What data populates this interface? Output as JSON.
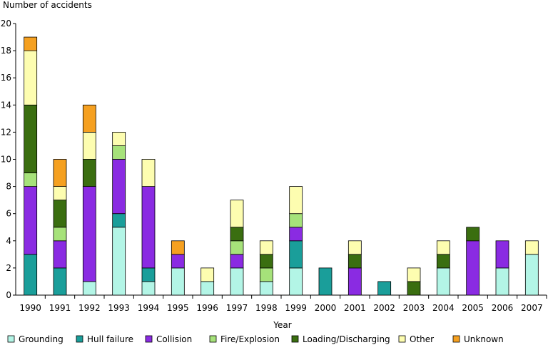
{
  "chart_data": {
    "type": "bar",
    "stacked": true,
    "title": "",
    "ylabel": "Number of accidents",
    "xlabel": "Year",
    "ylim": [
      0,
      20
    ],
    "yticks": [
      "0",
      "2",
      "4",
      "6",
      "8",
      "10",
      "12",
      "14",
      "16",
      "18",
      "20"
    ],
    "grid": false,
    "legend_position": "bottom",
    "categories": [
      "1990",
      "1991",
      "1992",
      "1993",
      "1994",
      "1995",
      "1996",
      "1997",
      "1998",
      "1999",
      "2000",
      "2001",
      "2002",
      "2003",
      "2004",
      "2005",
      "2006",
      "2007"
    ],
    "series": [
      {
        "name": "Grounding",
        "color": "#b3f5e6",
        "values": [
          0,
          0,
          1,
          5,
          1,
          2,
          1,
          2,
          1,
          2,
          0,
          0,
          0,
          0,
          2,
          0,
          2,
          3
        ]
      },
      {
        "name": "Hull failure",
        "color": "#1a9e9a",
        "values": [
          3,
          2,
          0,
          1,
          1,
          0,
          0,
          0,
          0,
          2,
          2,
          0,
          1,
          0,
          0,
          0,
          0,
          0
        ]
      },
      {
        "name": "Collision",
        "color": "#8a2be2",
        "values": [
          5,
          2,
          7,
          4,
          6,
          1,
          0,
          1,
          0,
          1,
          0,
          2,
          0,
          0,
          0,
          4,
          2,
          0
        ]
      },
      {
        "name": "Fire/Explosion",
        "color": "#a6e27a",
        "values": [
          1,
          1,
          0,
          1,
          0,
          0,
          0,
          1,
          1,
          1,
          0,
          0,
          0,
          0,
          0,
          0,
          0,
          0
        ]
      },
      {
        "name": "Loading/Discharging",
        "color": "#3a6e10",
        "values": [
          5,
          2,
          2,
          0,
          0,
          0,
          0,
          1,
          1,
          0,
          0,
          1,
          0,
          1,
          1,
          1,
          0,
          0
        ]
      },
      {
        "name": "Other",
        "color": "#fdfdb0",
        "values": [
          4,
          1,
          2,
          1,
          2,
          0,
          1,
          2,
          1,
          2,
          0,
          1,
          0,
          1,
          1,
          0,
          0,
          1
        ]
      },
      {
        "name": "Unknown",
        "color": "#f5a020",
        "values": [
          1,
          2,
          2,
          0,
          0,
          1,
          0,
          0,
          0,
          0,
          0,
          0,
          0,
          0,
          0,
          0,
          0,
          0
        ]
      }
    ]
  }
}
